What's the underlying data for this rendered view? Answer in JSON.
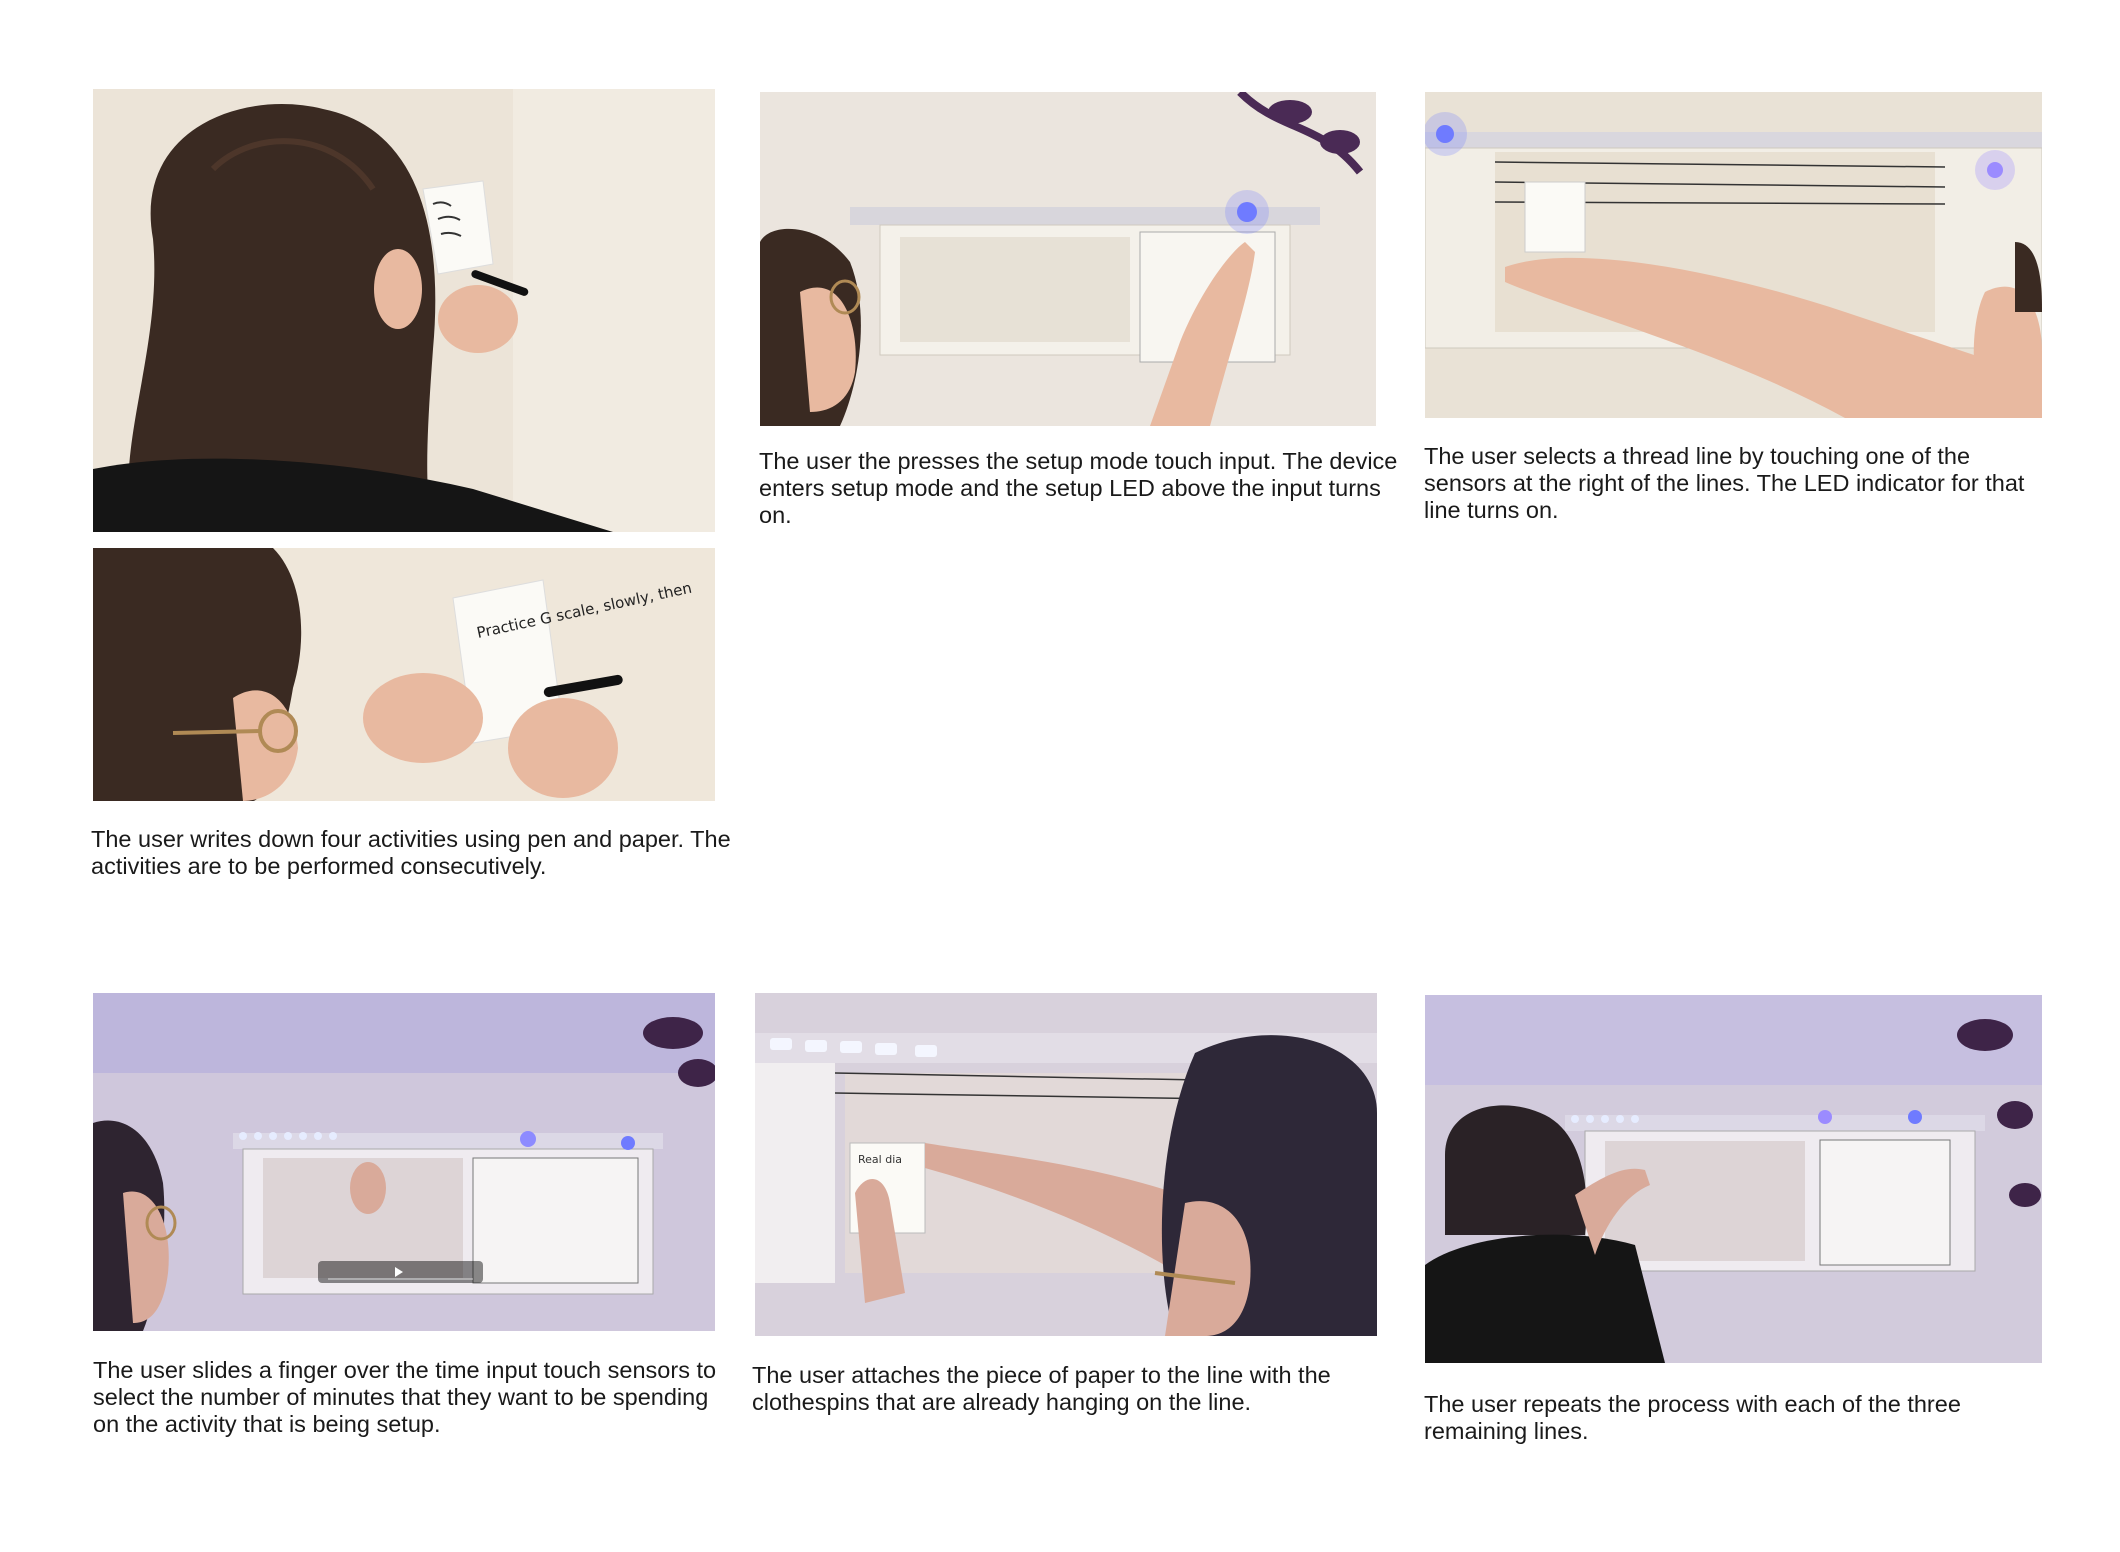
{
  "steps": [
    {
      "id": "write-first-note",
      "image_alt": "Woman with long dark hair writing a note on a white card held against a beige wall",
      "caption": ""
    },
    {
      "id": "write-activities",
      "image_alt": "Woman with glasses writing 'Practice G scale, slowly, then' on a card against the wall",
      "caption": "The user writes down four activities using pen and paper. The activities are to be performed consecutively."
    },
    {
      "id": "setup-mode",
      "image_alt": "User pressing the setup mode touch input on the wall-mounted shelf device, blue LED lit",
      "caption": "The user the presses the setup mode touch input. The device enters setup mode and the setup LED above the input turns on."
    },
    {
      "id": "select-line",
      "image_alt": "User reaching into the shelf to touch a thread line sensor, LED indicator lit",
      "caption": "The user selects a thread line by touching one of the sensors at the right of the lines. The LED indicator for that line turns on."
    },
    {
      "id": "time-input",
      "image_alt": "User sliding a finger over the illuminated time input touch sensors on the shelf",
      "caption": "The user slides a finger over the time input touch sensors to select the number of minutes that they want to be spending on the activity that is being setup."
    },
    {
      "id": "attach-paper",
      "image_alt": "User attaching a paper note to a thread line with clothespins under the shelf",
      "caption": "The user attaches the piece of paper to the line with the clothespins that are already hanging on the line."
    },
    {
      "id": "repeat-process",
      "image_alt": "User repeating the process for the remaining thread lines on the shelf",
      "caption": "The user repeats the process with each of the three remaining lines."
    }
  ],
  "overlays": {
    "note_text_1": "Practice G scale, slowly, then",
    "note_text_2": "Real dia"
  },
  "colors": {
    "wall": "#e8dfd2",
    "led_blue": "#6f7bff",
    "shelf": "#f4f1ea",
    "hair": "#3a2a22",
    "skin": "#e8b9a0",
    "shirt": "#151515"
  }
}
